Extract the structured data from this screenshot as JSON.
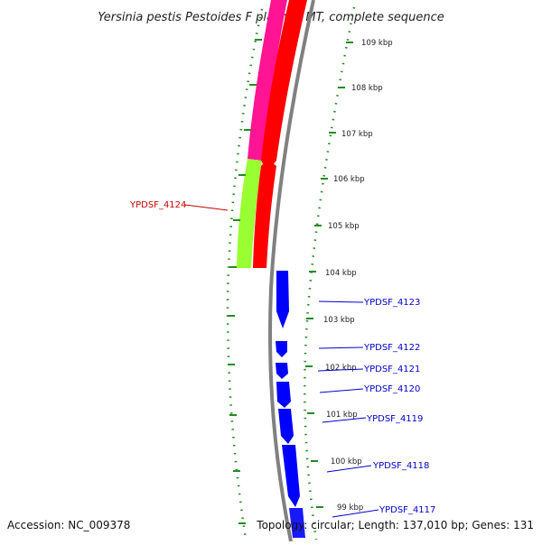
{
  "title": "Yersinia pestis Pestoides F plasmid MT, complete sequence",
  "footer": {
    "accession": "Accession: NC_009378",
    "summary": "Topology: circular; Length: 137,010 bp; Genes: 131"
  },
  "colors": {
    "backbone": "#808080",
    "magenta_feature": "#ff1493",
    "red_feature": "#ff0000",
    "lime_feature": "#99ff33",
    "blue_feature": "#0000ff",
    "ticks": "#228b22",
    "red_label": "#cc0000",
    "blue_label": "#0000cc"
  },
  "kbp_ticks": [
    {
      "label": "109 kbp"
    },
    {
      "label": "108 kbp"
    },
    {
      "label": "107 kbp"
    },
    {
      "label": "106 kbp"
    },
    {
      "label": "105 kbp"
    },
    {
      "label": "104 kbp"
    },
    {
      "label": "103 kbp"
    },
    {
      "label": "102 kbp"
    },
    {
      "label": "101 kbp"
    },
    {
      "label": "100 kbp"
    },
    {
      "label": "99 kbp"
    }
  ],
  "gene_labels": [
    {
      "label": "YPDSF_4124",
      "color": "red"
    },
    {
      "label": "YPDSF_4123",
      "color": "blue"
    },
    {
      "label": "YPDSF_4122",
      "color": "blue"
    },
    {
      "label": "YPDSF_4121",
      "color": "blue"
    },
    {
      "label": "YPDSF_4120",
      "color": "blue"
    },
    {
      "label": "YPDSF_4119",
      "color": "blue"
    },
    {
      "label": "YPDSF_4118",
      "color": "blue"
    },
    {
      "label": "YPDSF_4117",
      "color": "blue"
    }
  ]
}
